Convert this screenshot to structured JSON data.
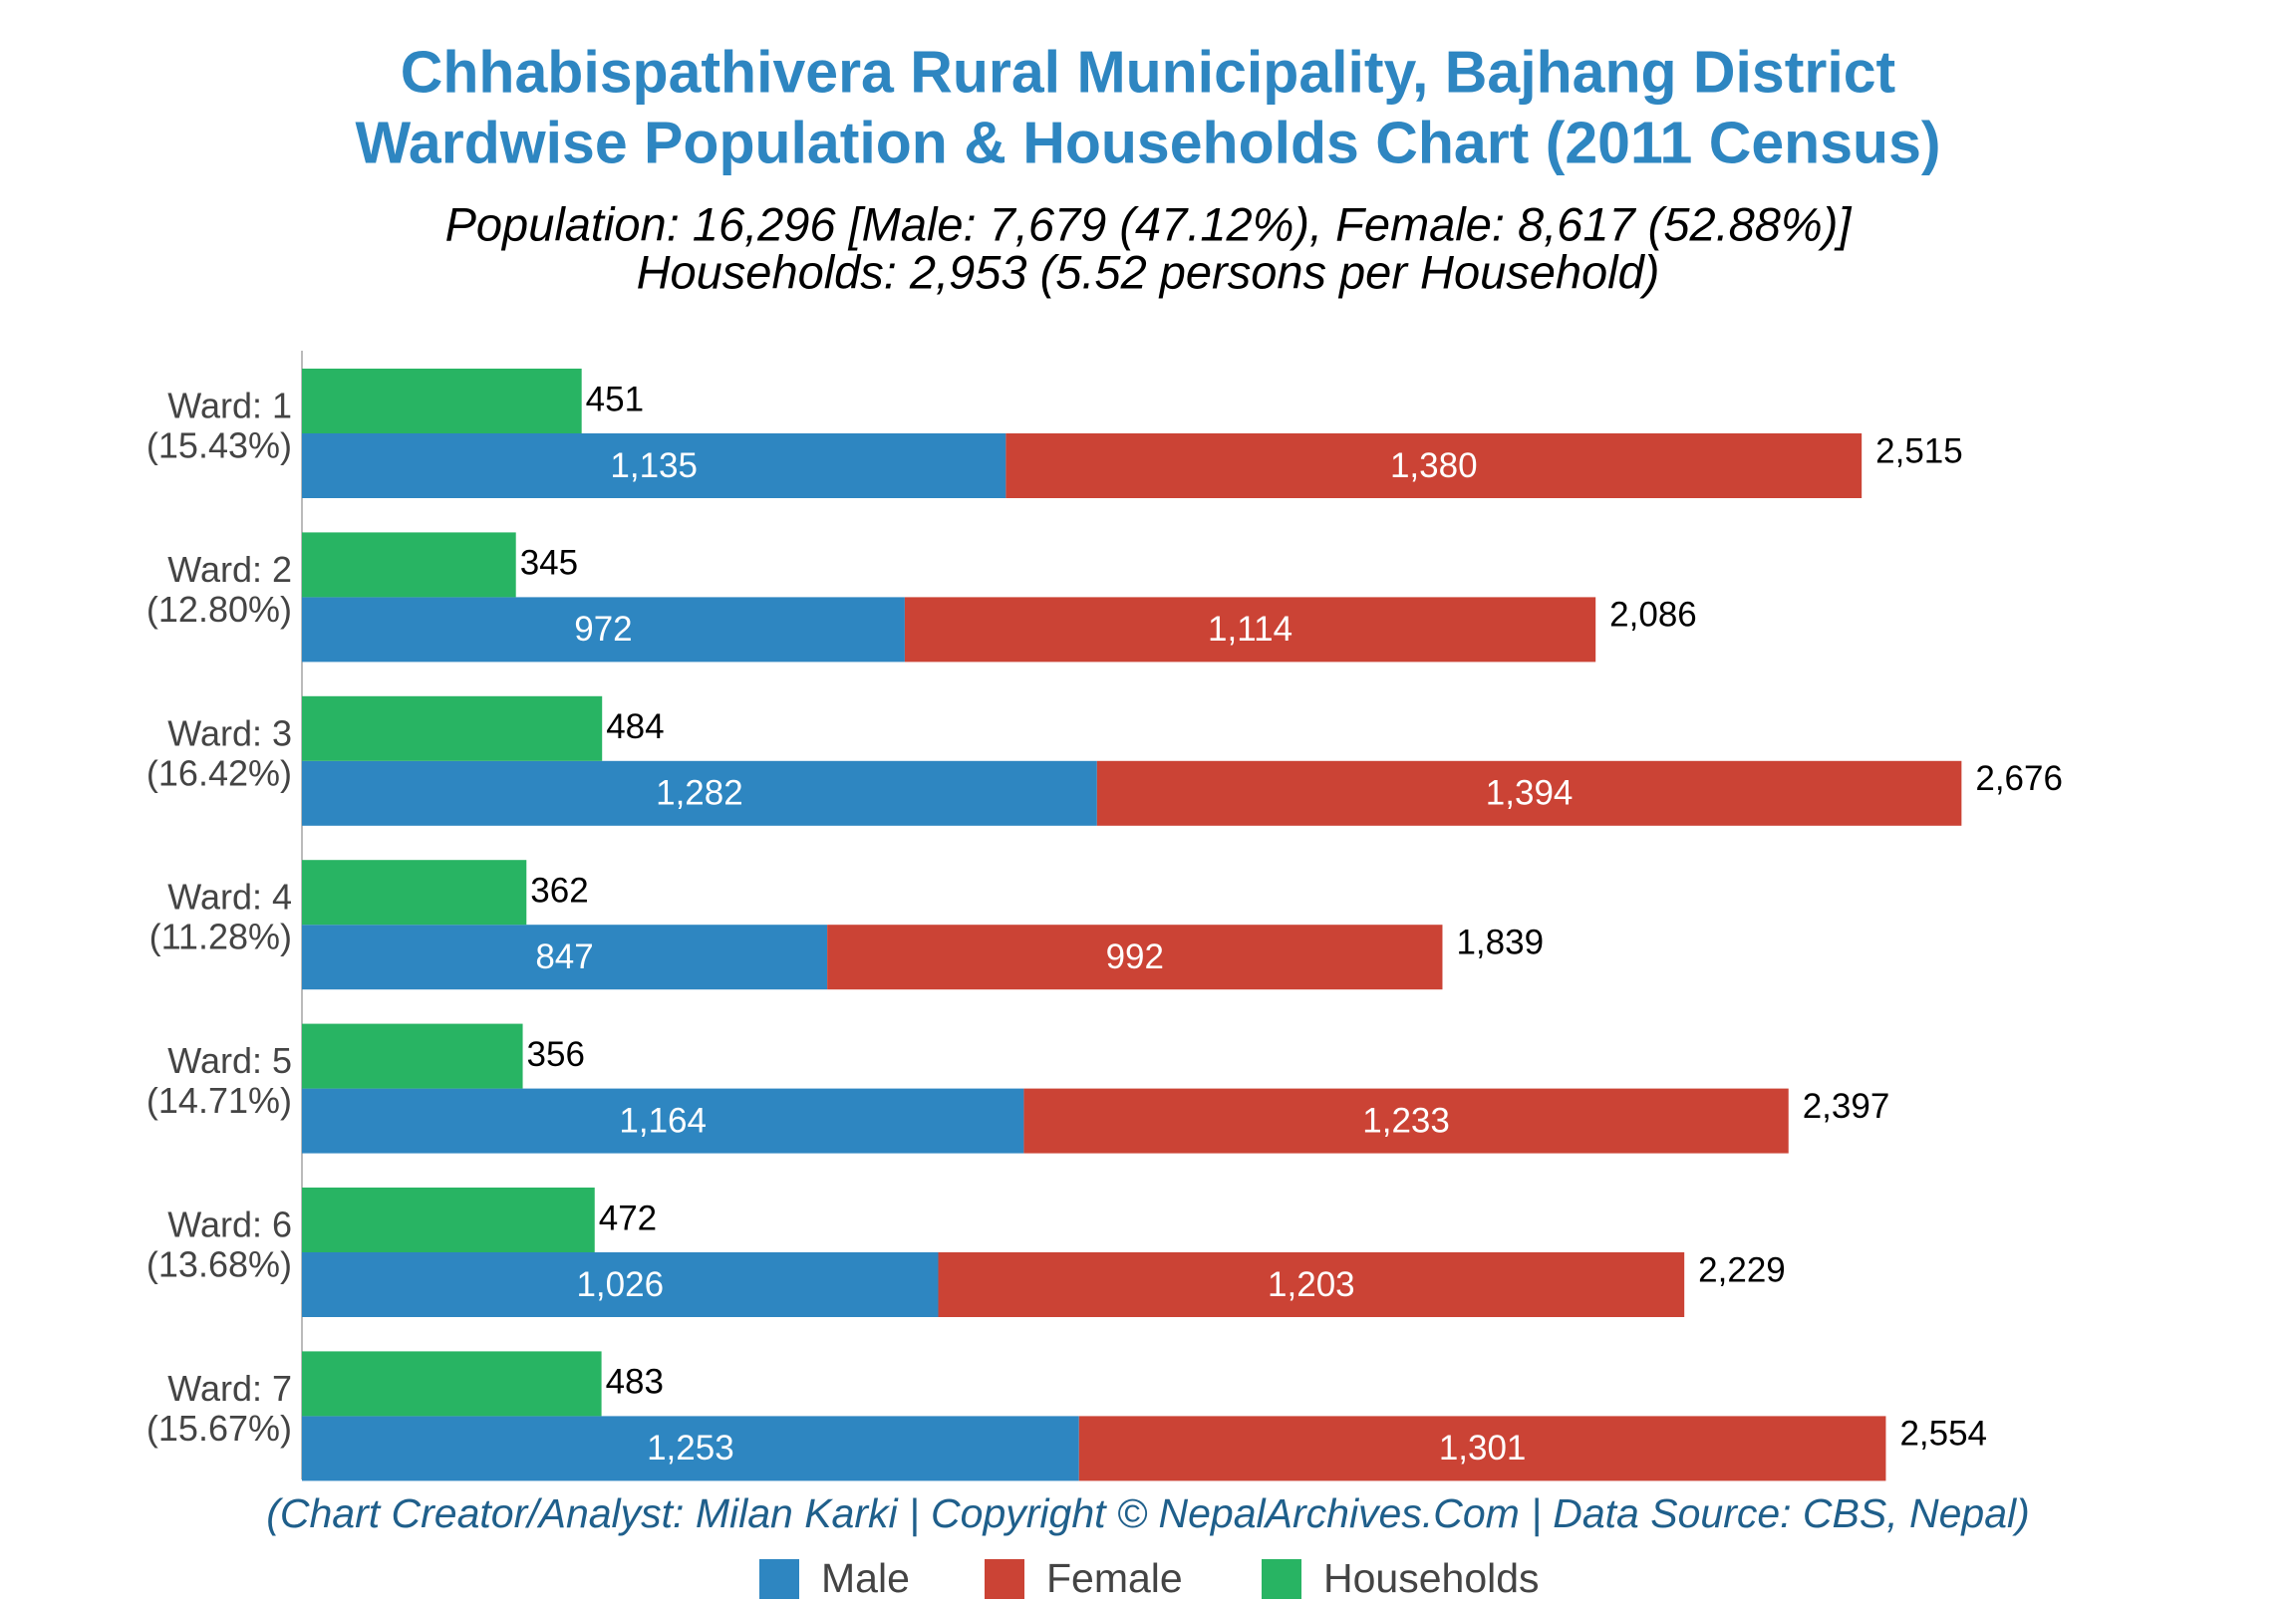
{
  "chart_data": {
    "type": "stacked_barh",
    "title": "Chhabispathivera Rural Municipality, Bajhang District",
    "title_line2": "Wardwise Population & Households Chart (2011 Census)",
    "subtitle": "Population: 16,296 [Male: 7,679 (47.12%), Female: 8,617 (52.88%)]",
    "subtitle_line2": "Households: 2,953 (5.52 persons per Household)",
    "credits": "(Chart Creator/Analyst: Milan Karki | Copyright © NepalArchives.Com | Data Source: CBS, Nepal)",
    "categories": [
      "Ward: 1",
      "Ward: 2",
      "Ward: 3",
      "Ward: 4",
      "Ward: 5",
      "Ward: 6",
      "Ward: 7"
    ],
    "ward_shares": [
      "(15.43%)",
      "(12.80%)",
      "(16.42%)",
      "(11.28%)",
      "(14.71%)",
      "(13.68%)",
      "(15.67%)"
    ],
    "xlim": [
      0,
      3000
    ],
    "series": [
      {
        "name": "Male",
        "color": "#2e86c1",
        "stack": "population",
        "values": [
          1135,
          972,
          1282,
          847,
          1164,
          1026,
          1253
        ],
        "value_labels": [
          "1,135",
          "972",
          "1,282",
          "847",
          "1,164",
          "1,026",
          "1,253"
        ]
      },
      {
        "name": "Female",
        "color": "#cb4335",
        "stack": "population",
        "values": [
          1380,
          1114,
          1394,
          992,
          1233,
          1203,
          1301
        ],
        "value_labels": [
          "1,380",
          "1,114",
          "1,394",
          "992",
          "1,233",
          "1,203",
          "1,301"
        ]
      },
      {
        "name": "Households",
        "color": "#28b463",
        "stack": "households",
        "values": [
          451,
          345,
          484,
          362,
          356,
          472,
          483
        ],
        "value_labels": [
          "451",
          "345",
          "484",
          "362",
          "356",
          "472",
          "483"
        ]
      }
    ],
    "totals": {
      "values": [
        2515,
        2086,
        2676,
        1839,
        2397,
        2229,
        2554
      ],
      "value_labels": [
        "2,515",
        "2,086",
        "2,676",
        "1,839",
        "2,397",
        "2,229",
        "2,554"
      ]
    }
  }
}
